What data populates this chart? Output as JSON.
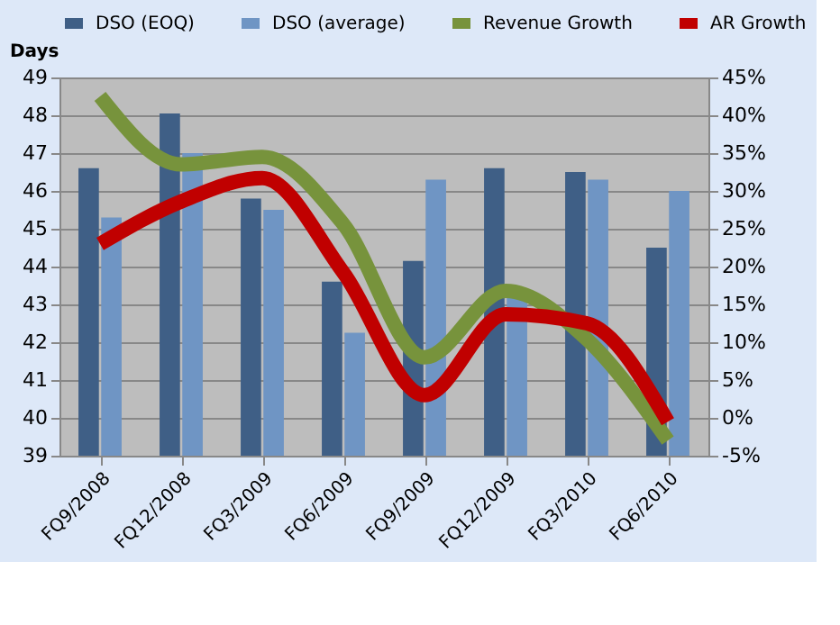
{
  "chart_data": {
    "type": "bar",
    "ylabel": "Days",
    "categories": [
      "FQ9/2008",
      "FQ12/2008",
      "FQ3/2009",
      "FQ6/2009",
      "FQ9/2009",
      "FQ12/2009",
      "FQ3/2010",
      "FQ6/2010"
    ],
    "series": [
      {
        "name": "DSO (EOQ)",
        "color": "#3f5f86",
        "values": [
          46.6,
          48.05,
          45.8,
          43.6,
          44.15,
          46.6,
          46.5,
          44.5
        ]
      },
      {
        "name": "DSO (average)",
        "color": "#6f95c4",
        "values": [
          45.3,
          47.0,
          45.5,
          42.25,
          46.3,
          43.3,
          46.3,
          46.0
        ]
      },
      {
        "name": "Revenue Growth",
        "type": "line",
        "axis": "y2",
        "color": "#77933c",
        "values": [
          42.5,
          33.5,
          34.5,
          25.6,
          8,
          16.8,
          10.4,
          -3
        ]
      },
      {
        "name": "AR Growth",
        "type": "line",
        "axis": "y2",
        "color": "#c00000",
        "values": [
          23,
          28.6,
          31.7,
          19.2,
          3,
          13.7,
          12.5,
          -0.5
        ]
      }
    ],
    "ylim": [
      39,
      49
    ],
    "yticks": [
      39,
      40,
      41,
      42,
      43,
      44,
      45,
      46,
      47,
      48,
      49
    ],
    "y2lim": [
      -5,
      45
    ],
    "y2ticks": [
      {
        "value": -5,
        "label": "-5%"
      },
      {
        "value": 0,
        "label": "0%"
      },
      {
        "value": 5,
        "label": "5%"
      },
      {
        "value": 10,
        "label": "10%"
      },
      {
        "value": 15,
        "label": "15%"
      },
      {
        "value": 20,
        "label": "20%"
      },
      {
        "value": 25,
        "label": "25%"
      },
      {
        "value": 30,
        "label": "30%"
      },
      {
        "value": 35,
        "label": "35%"
      },
      {
        "value": 40,
        "label": "40%"
      },
      {
        "value": 45,
        "label": "45%"
      }
    ],
    "grid": "y",
    "legend": "top"
  }
}
